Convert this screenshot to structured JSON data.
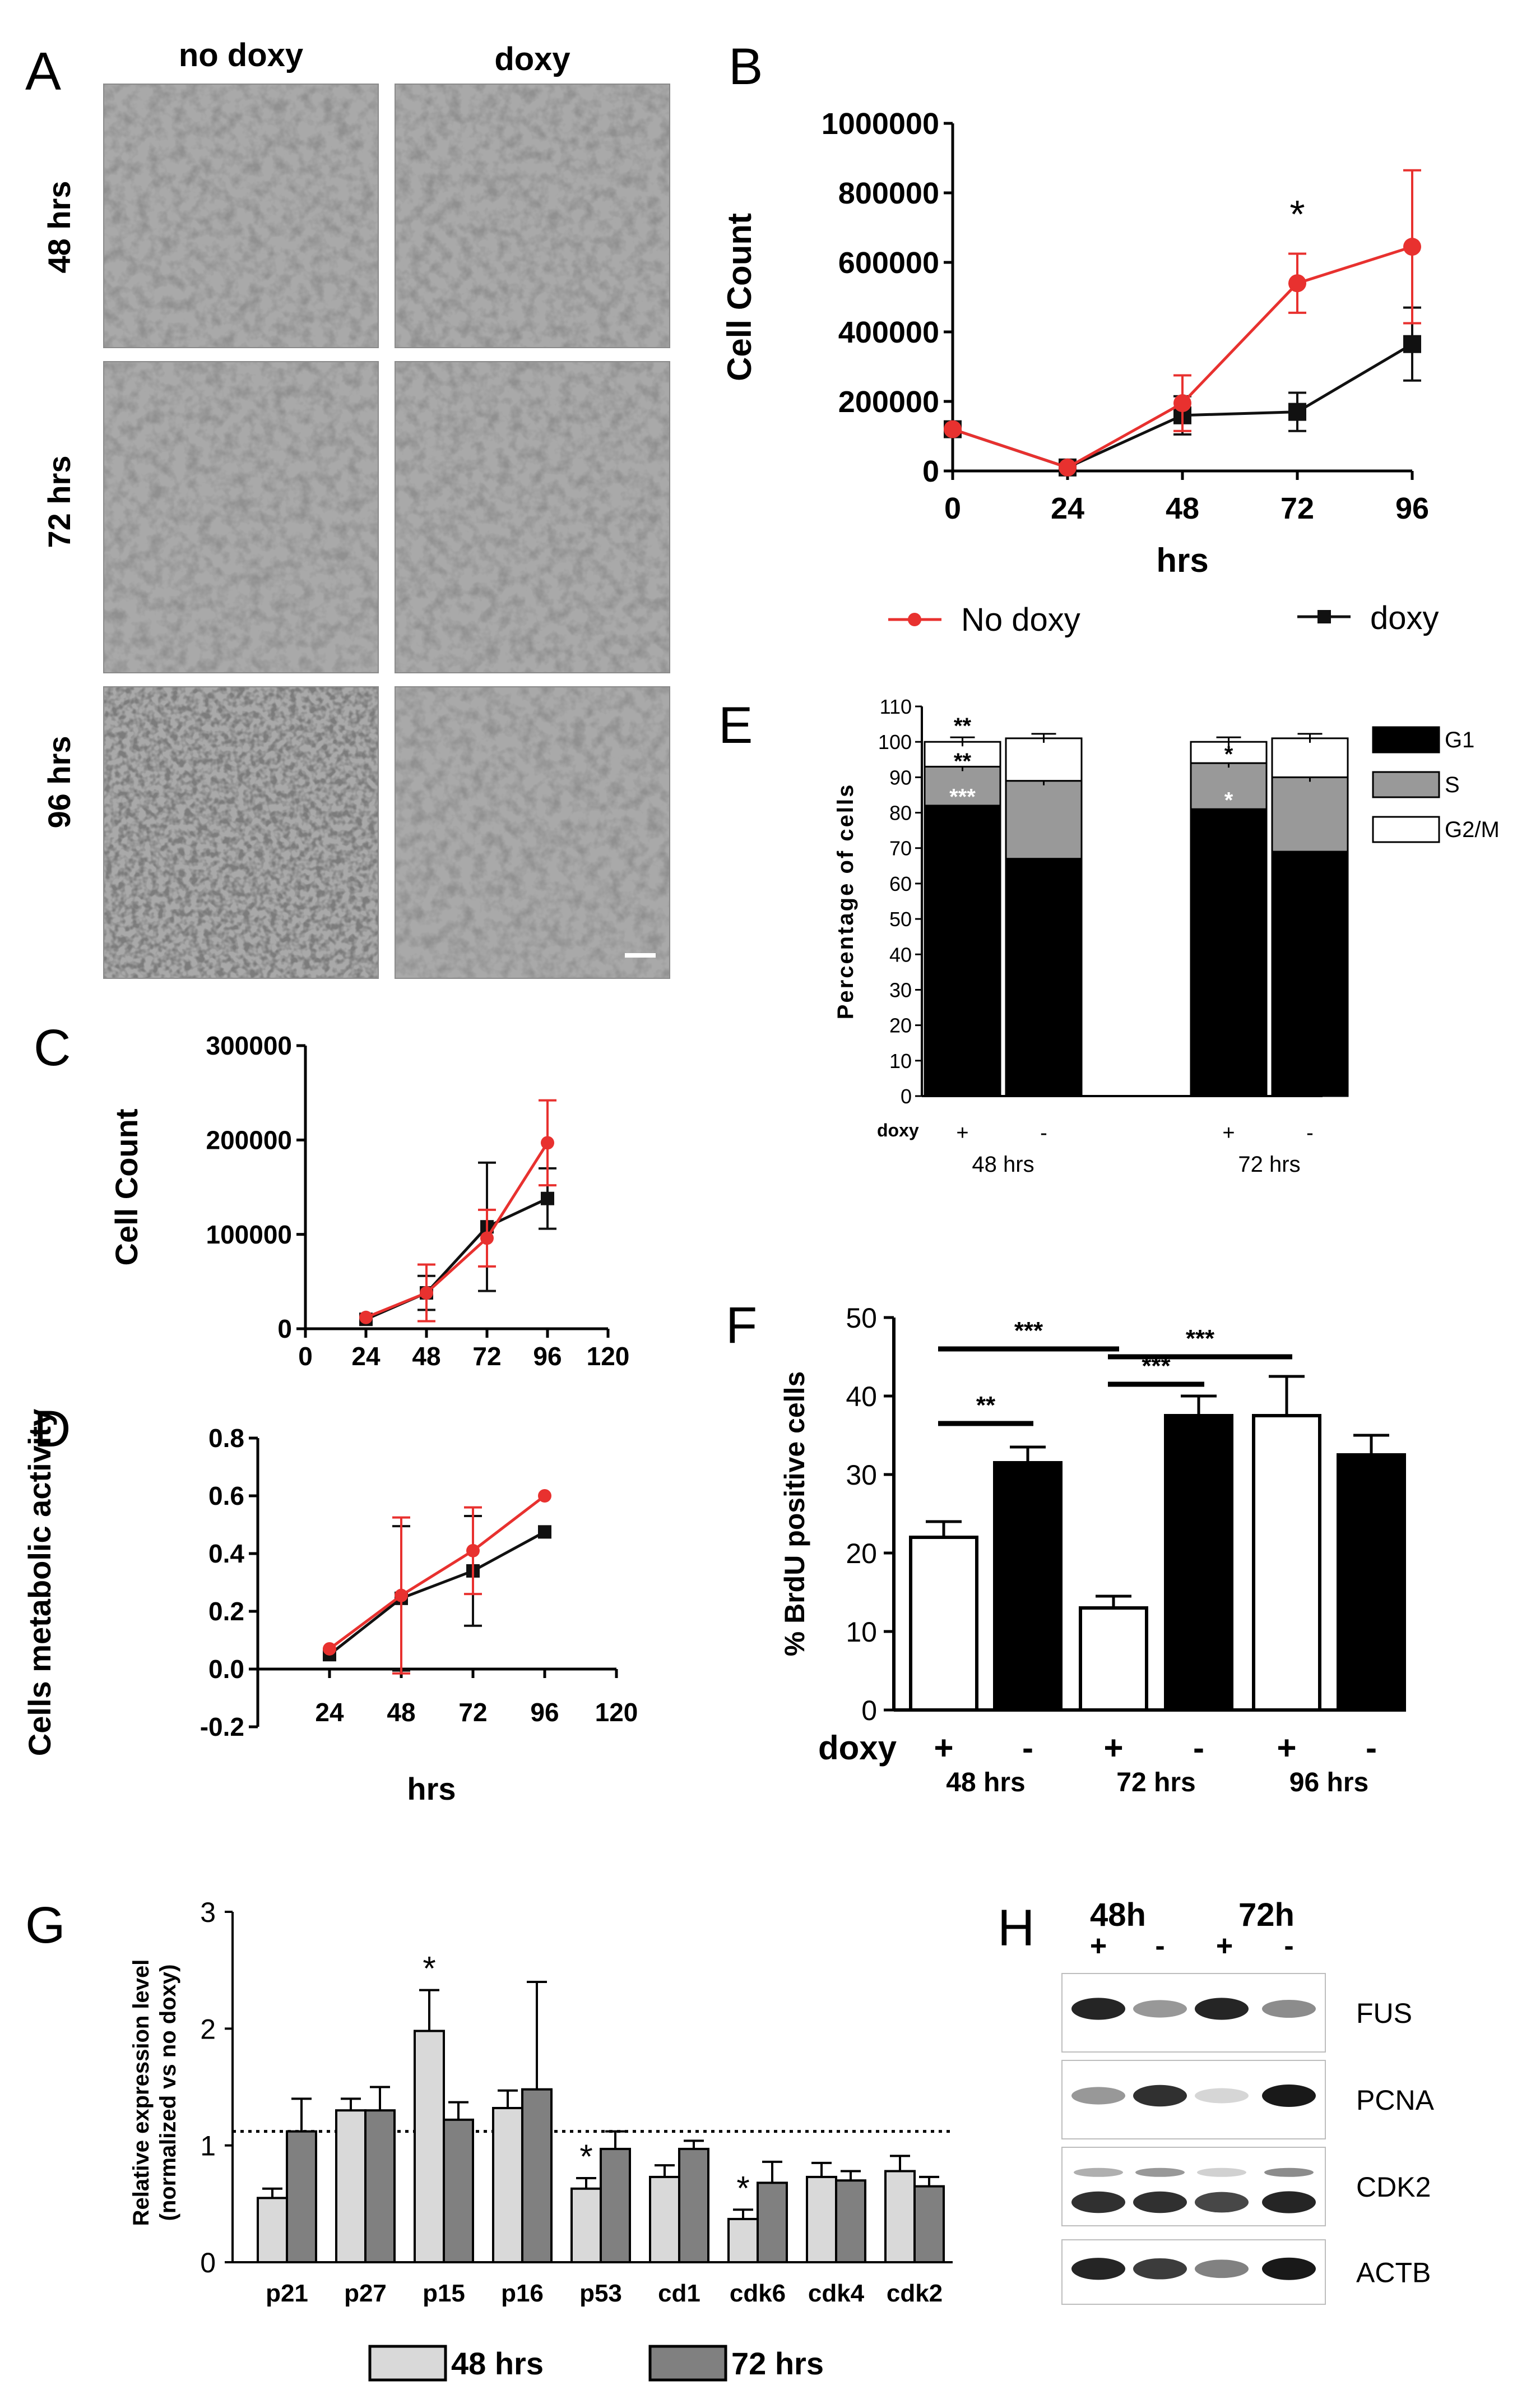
{
  "panels": {
    "A": {
      "letter": "A",
      "col_headers": [
        "no doxy",
        "doxy"
      ],
      "row_headers": [
        "48 hrs",
        "72 hrs",
        "96 hrs"
      ]
    },
    "H": {
      "letter": "H",
      "time_labels": [
        "48h",
        "72h"
      ],
      "lane_signs": [
        "+",
        "-",
        "+",
        "-"
      ],
      "proteins": [
        "FUS",
        "PCNA",
        "CDK2",
        "ACTB"
      ],
      "band_intensity": {
        "FUS": [
          0.95,
          0.45,
          0.95,
          0.5
        ],
        "PCNA": [
          0.45,
          0.9,
          0.18,
          1.0
        ],
        "CDK2": [
          0.9,
          0.9,
          0.8,
          0.95
        ],
        "ACTB": [
          0.95,
          0.85,
          0.55,
          1.0
        ]
      }
    }
  },
  "chart_data": [
    {
      "id": "B",
      "letter": "B",
      "type": "line",
      "xlabel": "hrs",
      "ylabel": "Cell Count",
      "x": [
        0,
        24,
        48,
        72,
        96
      ],
      "ylim": [
        0,
        1000000
      ],
      "yticks": [
        "0",
        "200000",
        "400000",
        "600000",
        "800000",
        "1000000"
      ],
      "series": [
        {
          "name": "No doxy",
          "color": "#e8312f",
          "marker": "circle",
          "values": [
            120000,
            10000,
            195000,
            540000,
            645000
          ],
          "errors": [
            0,
            0,
            80000,
            85000,
            220000
          ]
        },
        {
          "name": "doxy",
          "color": "#111111",
          "marker": "square",
          "values": [
            120000,
            10000,
            160000,
            170000,
            365000
          ],
          "errors": [
            0,
            0,
            55000,
            55000,
            105000
          ]
        }
      ],
      "annotations": [
        {
          "x": 72,
          "y": 740000,
          "text": "*"
        }
      ],
      "legend": "bottom"
    },
    {
      "id": "C",
      "letter": "C",
      "type": "line",
      "xlabel": "hrs",
      "ylabel": "Cell Count",
      "xticks": [
        "0",
        "24",
        "48",
        "72",
        "96",
        "120"
      ],
      "ylim": [
        0,
        300000
      ],
      "yticks": [
        "0",
        "100000",
        "200000",
        "300000"
      ],
      "series": [
        {
          "name": "No doxy",
          "color": "#e8312f",
          "x": [
            24,
            48,
            72,
            96
          ],
          "values": [
            12000,
            38000,
            96000,
            197000
          ],
          "errors": [
            0,
            30000,
            30000,
            45000
          ]
        },
        {
          "name": "doxy",
          "color": "#111111",
          "x": [
            24,
            48,
            72,
            96
          ],
          "values": [
            10000,
            38000,
            108000,
            138000
          ],
          "errors": [
            0,
            18000,
            68000,
            32000
          ]
        }
      ]
    },
    {
      "id": "D",
      "letter": "D",
      "type": "line",
      "xlabel": "hrs",
      "ylabel": "Cells metabolic activity",
      "xticks": [
        "24",
        "48",
        "72",
        "96",
        "120"
      ],
      "ylim": [
        -0.2,
        0.8
      ],
      "yticks": [
        "-0.2",
        "0.0",
        "0.2",
        "0.4",
        "0.6",
        "0.8"
      ],
      "series": [
        {
          "name": "No doxy",
          "color": "#e8312f",
          "x": [
            24,
            48,
            72,
            96
          ],
          "values": [
            0.07,
            0.255,
            0.41,
            0.6
          ],
          "errors": [
            0,
            0.27,
            0.15,
            0
          ]
        },
        {
          "name": "doxy",
          "color": "#111111",
          "x": [
            24,
            48,
            72,
            96
          ],
          "values": [
            0.05,
            0.245,
            0.34,
            0.475
          ],
          "errors": [
            0,
            0.25,
            0.19,
            0
          ]
        }
      ]
    },
    {
      "id": "E",
      "letter": "E",
      "type": "bar",
      "stacked": true,
      "ylabel": "Percentage of cells",
      "ylim": [
        0,
        110
      ],
      "yticks": [
        "0",
        "10",
        "20",
        "30",
        "40",
        "50",
        "60",
        "70",
        "80",
        "90",
        "100",
        "110"
      ],
      "doxy_label": "doxy",
      "groups": [
        {
          "label": "48 hrs",
          "bars": [
            {
              "sign": "+",
              "G1": 82,
              "S": 11,
              "G2M": 7
            },
            {
              "sign": "-",
              "G1": 67,
              "S": 22,
              "G2M": 12
            }
          ]
        },
        {
          "label": "72 hrs",
          "bars": [
            {
              "sign": "+",
              "G1": 81,
              "S": 13,
              "G2M": 6
            },
            {
              "sign": "-",
              "G1": 69,
              "S": 21,
              "G2M": 11
            }
          ]
        }
      ],
      "legend": [
        {
          "name": "G1",
          "color": "#000000"
        },
        {
          "name": "S",
          "color": "#999999"
        },
        {
          "name": "G2/M",
          "color": "#ffffff"
        }
      ],
      "significance": [
        {
          "group": 0,
          "bar": 0,
          "y": 104,
          "text": "**"
        },
        {
          "group": 0,
          "bar": 0,
          "y": 94,
          "text": "**"
        },
        {
          "group": 0,
          "bar": 0,
          "y": 84,
          "text": "***"
        },
        {
          "group": 1,
          "bar": 0,
          "y": 96,
          "text": "*"
        },
        {
          "group": 1,
          "bar": 0,
          "y": 83,
          "text": "*"
        }
      ]
    },
    {
      "id": "F",
      "letter": "F",
      "type": "bar",
      "ylabel": "% BrdU positive cells",
      "ylim": [
        0,
        50
      ],
      "yticks": [
        "0",
        "10",
        "20",
        "30",
        "40",
        "50"
      ],
      "doxy_label": "doxy",
      "groups": [
        {
          "label": "48 hrs",
          "bars": [
            {
              "sign": "+",
              "value": 22,
              "error": 2,
              "fill": "#ffffff"
            },
            {
              "sign": "-",
              "value": 31.5,
              "error": 2,
              "fill": "#000000"
            }
          ]
        },
        {
          "label": "72 hrs",
          "bars": [
            {
              "sign": "+",
              "value": 13,
              "error": 1.5,
              "fill": "#ffffff"
            },
            {
              "sign": "-",
              "value": 37.5,
              "error": 2.5,
              "fill": "#000000"
            }
          ]
        },
        {
          "label": "96 hrs",
          "bars": [
            {
              "sign": "+",
              "value": 37.5,
              "error": 5,
              "fill": "#ffffff"
            },
            {
              "sign": "-",
              "value": 32.5,
              "error": 2.5,
              "fill": "#000000"
            }
          ]
        }
      ],
      "brackets": [
        {
          "from": [
            0,
            0
          ],
          "to": [
            0,
            1
          ],
          "y": 36.5,
          "text": "**"
        },
        {
          "from": [
            0,
            0
          ],
          "to": [
            1,
            0
          ],
          "y": 46,
          "text": "***"
        },
        {
          "from": [
            1,
            0
          ],
          "to": [
            1,
            1
          ],
          "y": 41.5,
          "text": "***"
        },
        {
          "from": [
            1,
            0
          ],
          "to": [
            2,
            0
          ],
          "y": 45,
          "text": "***"
        }
      ]
    },
    {
      "id": "G",
      "letter": "G",
      "type": "bar",
      "ylabel_lines": [
        "Relative expression level",
        "(normalized vs no doxy)"
      ],
      "ylim": [
        0,
        3
      ],
      "yticks": [
        "0",
        "1",
        "2",
        "3"
      ],
      "categories": [
        "p21",
        "p27",
        "p15",
        "p16",
        "p53",
        "cd1",
        "cdk6",
        "cdk4",
        "cdk2"
      ],
      "series": [
        {
          "name": "48 hrs",
          "color": "#d9d9d9",
          "values": [
            0.55,
            1.3,
            1.98,
            1.32,
            0.63,
            0.73,
            0.37,
            0.73,
            0.78
          ],
          "errors": [
            0.08,
            0.1,
            0.35,
            0.15,
            0.09,
            0.1,
            0.08,
            0.12,
            0.13
          ]
        },
        {
          "name": "72 hrs",
          "color": "#808080",
          "values": [
            1.12,
            1.3,
            1.22,
            1.48,
            0.97,
            0.97,
            0.68,
            0.7,
            0.65
          ],
          "errors": [
            0.28,
            0.2,
            0.15,
            0.92,
            0.15,
            0.07,
            0.18,
            0.08,
            0.08
          ]
        }
      ],
      "reference_line": 1.12,
      "annotations": [
        {
          "category": 2,
          "series": 0,
          "text": "*"
        },
        {
          "category": 4,
          "series": 0,
          "text": "*"
        },
        {
          "category": 6,
          "series": 0,
          "text": "*"
        }
      ],
      "legend": "bottom"
    }
  ]
}
